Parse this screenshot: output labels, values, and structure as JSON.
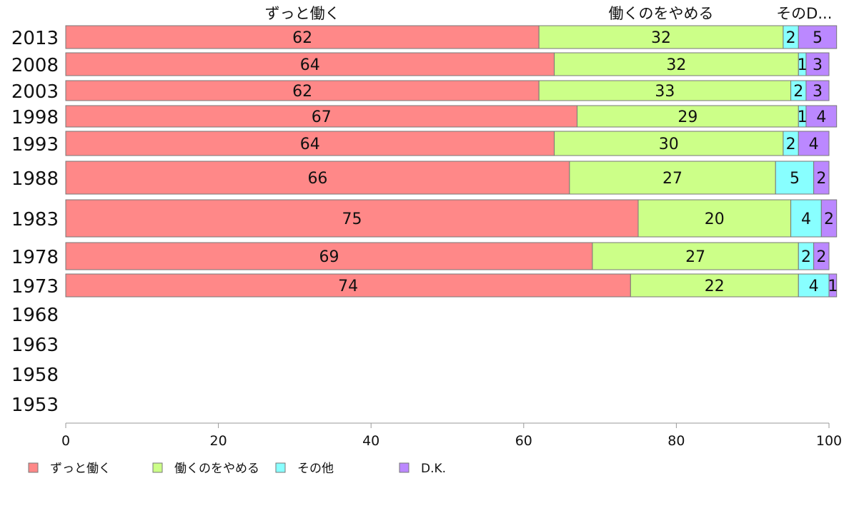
{
  "chart_data": {
    "type": "bar",
    "orientation": "horizontal",
    "stacked": true,
    "title": "",
    "xlabel": "",
    "ylabel": "",
    "xlim": [
      0,
      100
    ],
    "x_ticks": [
      0,
      20,
      40,
      60,
      80,
      100
    ],
    "grid": false,
    "legend_position": "bottom",
    "categories": [
      "2013",
      "2008",
      "2003",
      "1998",
      "1993",
      "1988",
      "1983",
      "1978",
      "1973",
      "1968",
      "1963",
      "1958",
      "1953"
    ],
    "top_labels": [
      "ずっと働く",
      "働くのをやめる",
      "そのD..."
    ],
    "series": [
      {
        "name": "ずっと働く",
        "color": "#ff8888",
        "values": [
          62,
          64,
          62,
          67,
          64,
          66,
          75,
          69,
          74,
          null,
          null,
          null,
          null
        ]
      },
      {
        "name": "働くのをやめる",
        "color": "#ccff88",
        "values": [
          32,
          32,
          33,
          29,
          30,
          27,
          20,
          27,
          22,
          null,
          null,
          null,
          null
        ]
      },
      {
        "name": "その他",
        "color": "#88ffff",
        "values": [
          2,
          1,
          2,
          1,
          2,
          5,
          4,
          2,
          4,
          null,
          null,
          null,
          null
        ]
      },
      {
        "name": "D.K.",
        "color": "#bb88ff",
        "values": [
          5,
          3,
          3,
          4,
          4,
          2,
          2,
          2,
          1,
          null,
          null,
          null,
          null
        ]
      }
    ]
  }
}
